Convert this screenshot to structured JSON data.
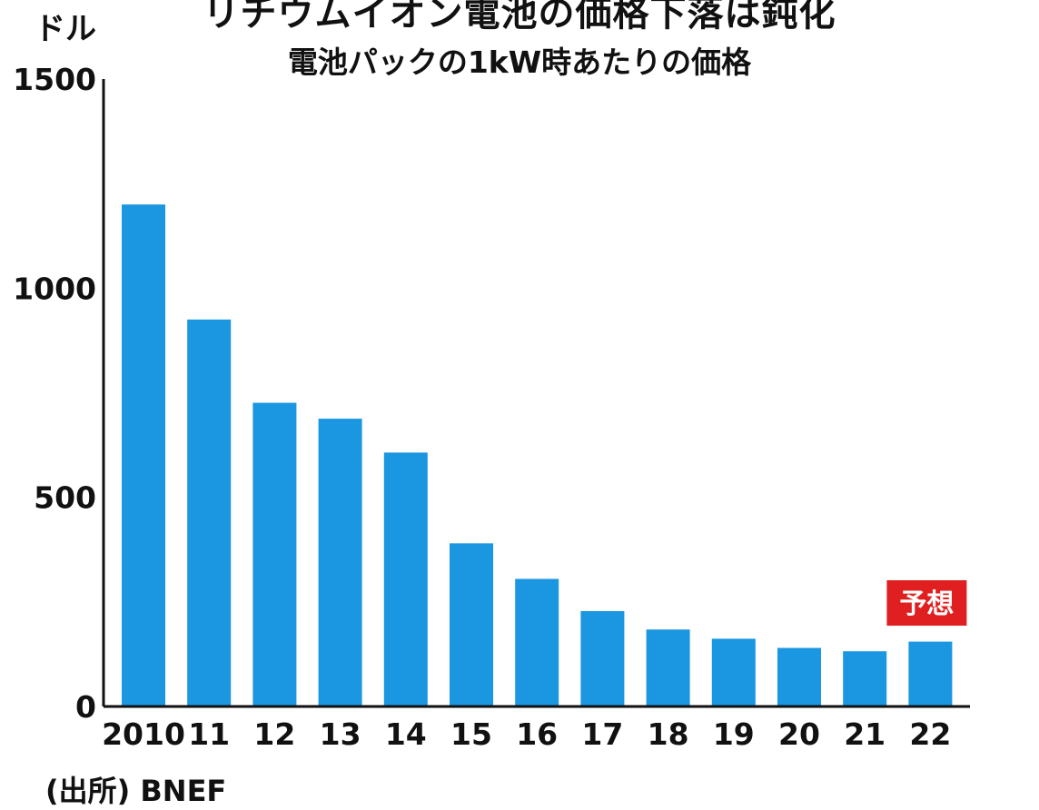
{
  "chart_data": {
    "type": "bar",
    "title": "リチウムイオン電池の価格下落は鈍化",
    "subtitle": "電池パックの1kW時あたりの価格",
    "ylabel": "ドル",
    "categories": [
      "2010",
      "11",
      "12",
      "13",
      "14",
      "15",
      "16",
      "17",
      "18",
      "19",
      "20",
      "21",
      "22"
    ],
    "values": [
      1200,
      925,
      726,
      688,
      607,
      390,
      305,
      228,
      184,
      162,
      140,
      132,
      155
    ],
    "ylim": [
      0,
      1500
    ],
    "yticks": [
      "0",
      "500",
      "1000",
      "1500"
    ],
    "bar_color": "#1b96e0",
    "annotation": {
      "text": "予想",
      "category": "22",
      "color": "#e02020"
    },
    "source": "(出所) BNEF",
    "grid": false,
    "legend": "none"
  }
}
